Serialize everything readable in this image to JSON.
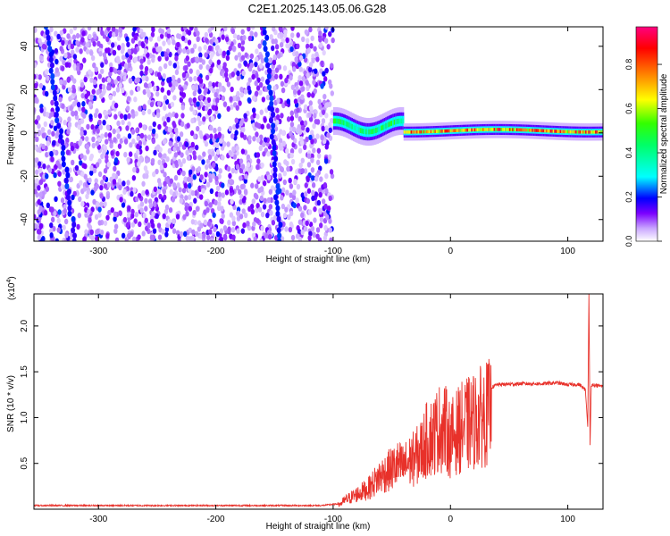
{
  "title": "C2E1.2025.143.05.06.G28",
  "chart_data": [
    {
      "type": "heatmap",
      "xlabel": "Height of straight line (km)",
      "ylabel": "Frequency (Hz)",
      "xlim": [
        -355,
        130
      ],
      "ylim": [
        -50,
        49
      ],
      "x_ticks": [
        -300,
        -200,
        -100,
        0,
        100
      ],
      "x_tick_labels": [
        "-300",
        "-200",
        "-100",
        "0",
        "100"
      ],
      "y_ticks": [
        -40,
        -20,
        0,
        20,
        40
      ],
      "y_tick_labels": [
        "-40",
        "-20",
        "0",
        "20",
        "40"
      ],
      "colorbar": {
        "label": "Normalized spectral amplitude",
        "range": [
          0.0,
          0.97
        ],
        "ticks": [
          0.0,
          0.2,
          0.4,
          0.6,
          0.8
        ],
        "tick_labels": [
          "0.0",
          "0.2",
          "0.4",
          "0.6",
          "0.8"
        ],
        "colors": [
          "#ffffff",
          "#7b00ff",
          "#0000ff",
          "#00ffff",
          "#00ff00",
          "#ffff00",
          "#ff8000",
          "#ff0000",
          "#ff0080"
        ]
      },
      "regions": [
        {
          "x": [
            -355,
            -100
          ],
          "description_free": true,
          "mean_amplitude": 0.05,
          "frequency_spread": [
            -50,
            49
          ]
        },
        {
          "x": [
            -100,
            -40
          ],
          "center_freq": 3,
          "width_hz": 8,
          "peak_amplitude": 0.55
        },
        {
          "x": [
            -40,
            130
          ],
          "center_freq": 1,
          "width_hz": 5,
          "peak_amplitude": 0.95
        }
      ]
    },
    {
      "type": "line",
      "xlabel": "Height of straight line (km)",
      "ylabel": "SNR (10 * v/v)",
      "yscale_label": "(x10",
      "yscale_exp": "4",
      "xlim": [
        -355,
        130
      ],
      "ylim": [
        0,
        2.35
      ],
      "x_ticks": [
        -300,
        -200,
        -100,
        0,
        100
      ],
      "x_tick_labels": [
        "-300",
        "-200",
        "-100",
        "0",
        "100"
      ],
      "y_ticks": [
        0.5,
        1.0,
        1.5,
        2.0
      ],
      "y_tick_labels": [
        "0.5",
        "1.0",
        "1.5",
        "2.0"
      ],
      "color": "#e8312a",
      "series": [
        {
          "x": [
            -355,
            -300,
            -250,
            -200,
            -150,
            -110,
            -95,
            -90,
            -80,
            -70,
            -60,
            -55,
            -50,
            -45,
            -40,
            -35,
            -30,
            -25,
            -20,
            -15,
            -10,
            -5,
            0,
            5,
            10,
            20,
            30,
            40,
            60,
            80,
            90,
            100,
            110,
            115,
            117,
            118,
            119,
            120,
            125,
            130
          ],
          "y": [
            0.04,
            0.04,
            0.04,
            0.04,
            0.04,
            0.04,
            0.06,
            0.12,
            0.2,
            0.28,
            0.45,
            0.5,
            0.55,
            0.6,
            0.58,
            0.65,
            0.7,
            0.8,
            0.95,
            1.0,
            1.1,
            1.12,
            0.95,
            1.05,
            1.12,
            1.2,
            1.3,
            1.36,
            1.37,
            1.37,
            1.38,
            1.36,
            1.36,
            1.3,
            0.9,
            2.35,
            0.7,
            1.36,
            1.35,
            1.34
          ]
        }
      ]
    }
  ]
}
